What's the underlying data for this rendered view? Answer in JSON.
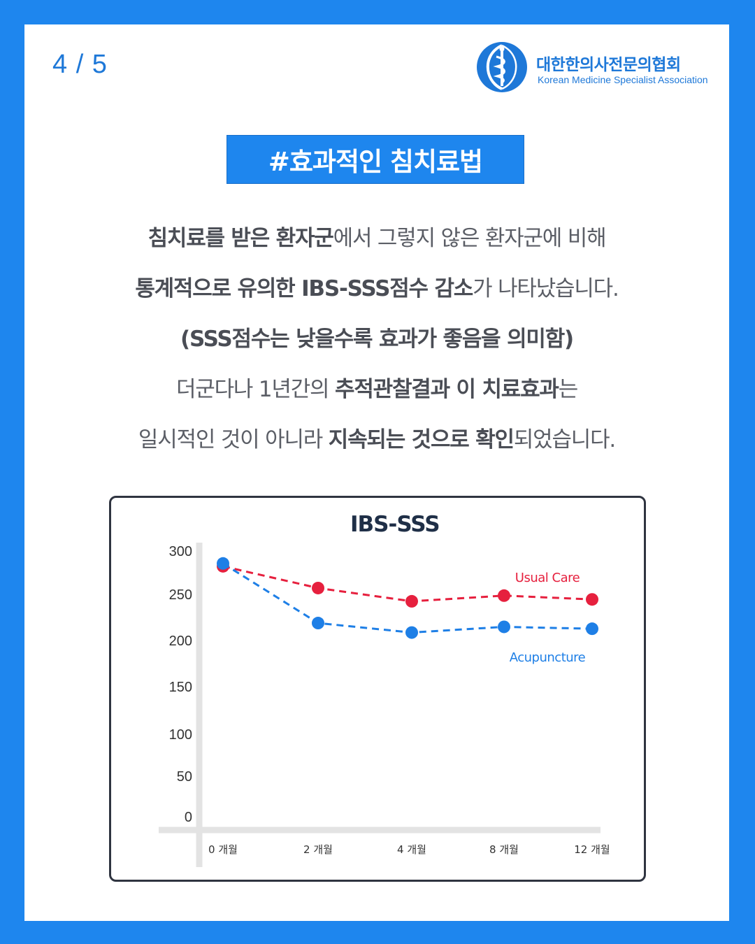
{
  "page_indicator": "4 / 5",
  "logo": {
    "korean_name": "대한한의사전문의협회",
    "english_name": "Korean Medicine Specialist Association",
    "icon": "caduceus-emblem-icon"
  },
  "title": "#효과적인 침치료법",
  "body_lines": [
    {
      "b1": "침치료를 받은 환자군",
      "n1": "에서 그렇지 않은 환자군에 비해",
      "b2": "",
      "n2": ""
    },
    {
      "b1": "통계적으로 유의한 IBS-SSS점수 감소",
      "n1": "가 나타났습니다.",
      "b2": "",
      "n2": ""
    },
    {
      "b1": "(SSS점수는 낮을수록 효과가 좋음을 의미함)",
      "n1": "",
      "b2": "",
      "n2": ""
    },
    {
      "b1": "",
      "n1": "더군다나 1년간의 ",
      "b2": "추적관찰결과 이 치료효과",
      "n2": "는"
    },
    {
      "b1": "",
      "n1": "일시적인 것이 아니라 ",
      "b2": "지속되는 것으로 확인",
      "n2": "되었습니다."
    }
  ],
  "colors": {
    "background": "#1e86ee",
    "accent": "#1e78d8",
    "usual_care": "#e6203e",
    "acupuncture": "#1e7fe6",
    "axis": "#e3e3e3"
  },
  "chart_data": {
    "type": "line",
    "title": "IBS-SSS",
    "categories": [
      "0 개월",
      "2 개월",
      "4 개월",
      "8 개월",
      "12 개월"
    ],
    "y_ticks": [
      "300",
      "250",
      "200",
      "150",
      "100",
      "50",
      "0"
    ],
    "ylim": [
      0,
      300
    ],
    "series": [
      {
        "name": "Usual Care",
        "values": [
          275,
          252,
          238,
          244,
          240
        ],
        "color": "#e6203e",
        "style": "dashed"
      },
      {
        "name": "Acupuncture",
        "values": [
          278,
          215,
          205,
          211,
          209
        ],
        "color": "#1e7fe6",
        "style": "dashed"
      }
    ],
    "grid": false,
    "legend": "inline labels at right"
  }
}
